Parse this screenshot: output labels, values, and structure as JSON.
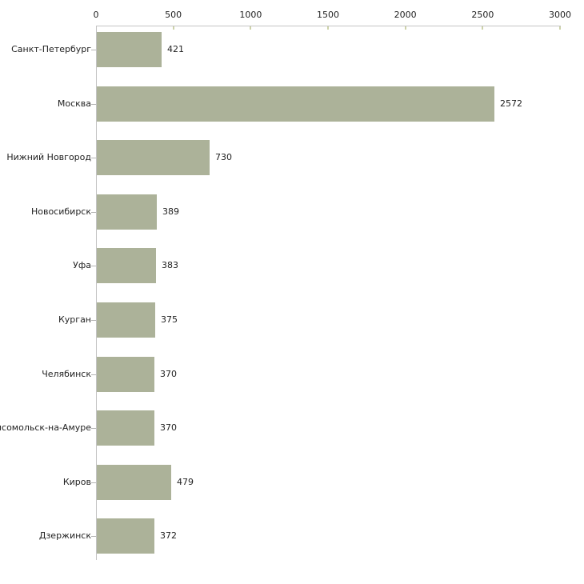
{
  "chart_data": {
    "type": "bar",
    "orientation": "horizontal",
    "title": "",
    "xlabel": "",
    "ylabel": "",
    "legend": "none",
    "grid": "off",
    "xlim": [
      0,
      3000
    ],
    "x_ticks": [
      0,
      500,
      1000,
      1500,
      2000,
      2500,
      3000
    ],
    "categories": [
      "Санкт-Петербург",
      "Москва",
      "Нижний Новгород",
      "Новосибирск",
      "Уфа",
      "Курган",
      "Челябинск",
      "мсомольск-на-Амуре",
      "Киров",
      "Дзержинск"
    ],
    "values": [
      421,
      2572,
      730,
      389,
      383,
      375,
      370,
      370,
      479,
      372
    ],
    "colors": {
      "bar": "#acb299",
      "axis_line": "#c3c3c3",
      "x_tick_mark": "#cdd2a9",
      "category_tick_dash": "#b3b3b3",
      "text": "#222222",
      "background": "#ffffff"
    }
  }
}
